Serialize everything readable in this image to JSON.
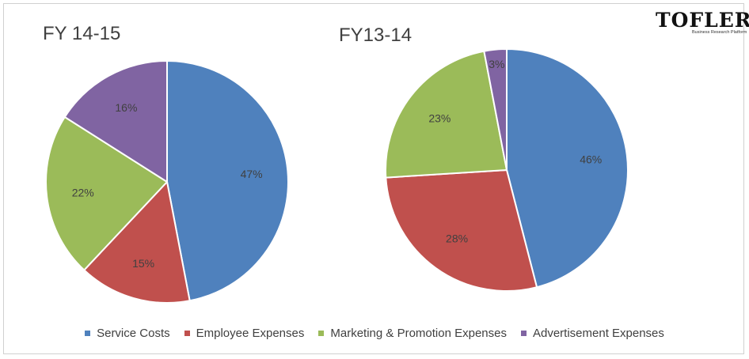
{
  "logo": {
    "brand": "TOFLER",
    "tagline": "Business Research Platform"
  },
  "colors": {
    "Service Costs": "#4f81bd",
    "Employee Expenses": "#c0504d",
    "Marketing & Promotion Expenses": "#9bbb59",
    "Advertisement Expenses": "#8064a2"
  },
  "legend": [
    "Service Costs",
    "Employee Expenses",
    "Marketing & Promotion Expenses",
    "Advertisement Expenses"
  ],
  "chart_data": [
    {
      "type": "pie",
      "title": "FY 14-15",
      "categories": [
        "Service Costs",
        "Employee Expenses",
        "Marketing & Promotion Expenses",
        "Advertisement Expenses"
      ],
      "values": [
        47,
        15,
        22,
        16
      ],
      "labels": [
        "47%",
        "15%",
        "22%",
        "16%"
      ],
      "legend_position": "bottom"
    },
    {
      "type": "pie",
      "title": "FY13-14",
      "categories": [
        "Service Costs",
        "Employee Expenses",
        "Marketing & Promotion Expenses",
        "Advertisement Expenses"
      ],
      "values": [
        46,
        28,
        23,
        3
      ],
      "labels": [
        "46%",
        "28%",
        "23%",
        "3%"
      ],
      "legend_position": "bottom"
    }
  ]
}
